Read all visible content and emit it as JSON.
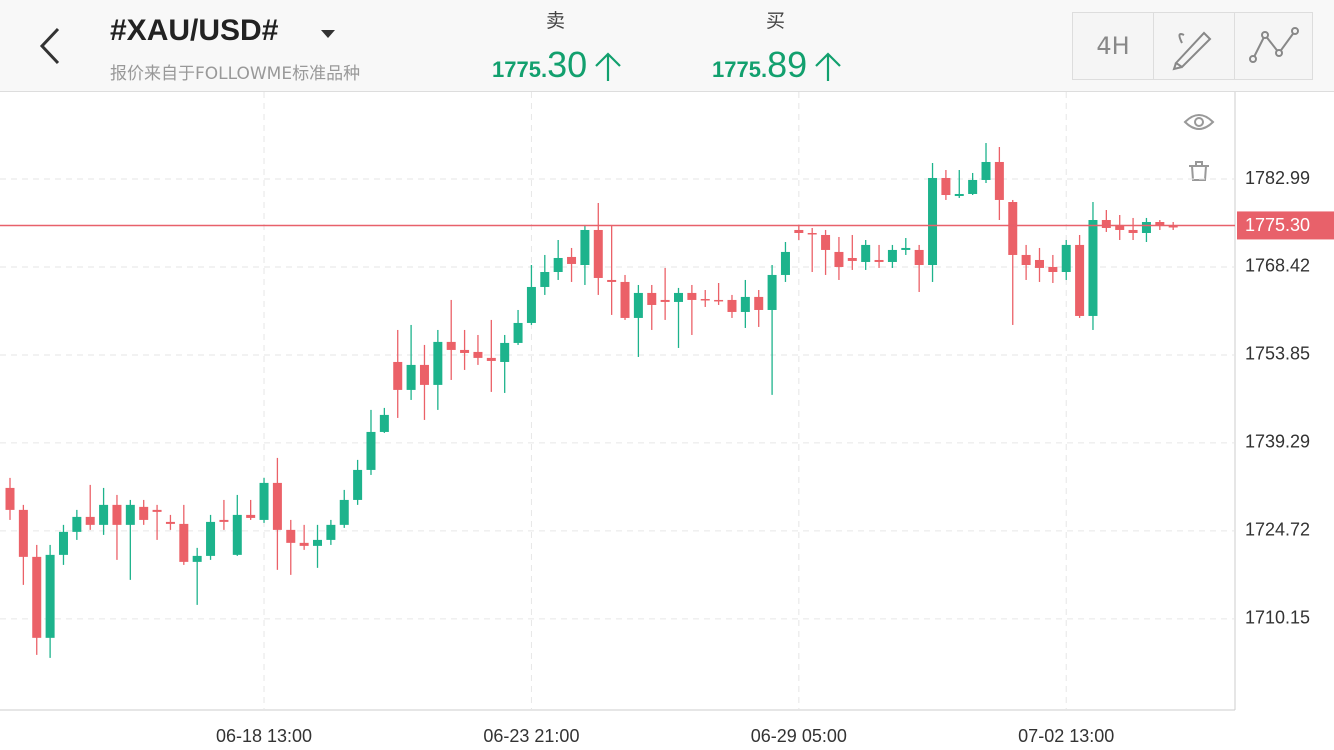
{
  "header": {
    "title": "#XAU/USD#",
    "subtitle": "报价来自于FOLLOWME标准品种",
    "sell": {
      "label": "卖",
      "price_small": "1775.",
      "price_large": "30"
    },
    "buy": {
      "label": "买",
      "price_small": "1775.",
      "price_large": "89"
    },
    "timeframe": "4H"
  },
  "chart_data": {
    "type": "candlestick",
    "categories": [
      null,
      null,
      null,
      null,
      null,
      null,
      null,
      null,
      null,
      null,
      null,
      null,
      null,
      null,
      null,
      null,
      null,
      null,
      null,
      "06-18 13:00",
      null,
      null,
      null,
      null,
      null,
      null,
      null,
      null,
      null,
      null,
      null,
      null,
      null,
      null,
      null,
      null,
      null,
      null,
      null,
      "06-23 21:00",
      null,
      null,
      null,
      null,
      null,
      null,
      null,
      null,
      null,
      null,
      null,
      null,
      null,
      null,
      null,
      null,
      null,
      null,
      null,
      "06-29 05:00",
      null,
      null,
      null,
      null,
      null,
      null,
      null,
      null,
      null,
      null,
      null,
      null,
      null,
      null,
      null,
      null,
      null,
      null,
      null,
      "07-02 13:00",
      null,
      null,
      null,
      null,
      null,
      null,
      null,
      null
    ],
    "open": [
      1731.83,
      1728.19,
      1720.41,
      1707.0,
      1720.74,
      1724.55,
      1727.03,
      1725.71,
      1729.02,
      1725.71,
      1728.69,
      1728.19,
      1726.2,
      1725.87,
      1719.58,
      1720.57,
      1726.53,
      1720.74,
      1727.36,
      1726.53,
      1732.66,
      1724.88,
      1722.73,
      1722.23,
      1723.22,
      1725.71,
      1729.84,
      1734.81,
      1741.1,
      1752.69,
      1748.06,
      1752.2,
      1748.89,
      1756.01,
      1754.68,
      1754.35,
      1753.36,
      1752.69,
      1755.84,
      1759.15,
      1765.11,
      1767.59,
      1770.08,
      1768.75,
      1774.55,
      1766.27,
      1765.94,
      1759.98,
      1764.12,
      1762.96,
      1762.63,
      1764.12,
      1763.12,
      1762.96,
      1762.96,
      1760.97,
      1763.46,
      1761.3,
      1767.1,
      1774.55,
      1774.05,
      1773.72,
      1770.91,
      1769.91,
      1769.25,
      1769.58,
      1769.25,
      1771.24,
      1771.24,
      1768.75,
      1783.16,
      1780.18,
      1780.51,
      1782.83,
      1785.81,
      1779.18,
      1770.41,
      1769.58,
      1768.42,
      1767.59,
      1772.07,
      1760.31,
      1776.2,
      1775.38,
      1774.55,
      1774.05,
      1775.87,
      1775.21
    ],
    "high": [
      1733.49,
      1729.02,
      1722.39,
      1722.39,
      1725.71,
      1728.19,
      1732.33,
      1731.83,
      1730.67,
      1729.84,
      1729.84,
      1729.02,
      1727.36,
      1729.02,
      1721.9,
      1727.36,
      1729.84,
      1730.67,
      1729.84,
      1733.49,
      1736.8,
      1726.53,
      1725.71,
      1725.71,
      1726.53,
      1731.5,
      1736.47,
      1744.75,
      1745.08,
      1757.99,
      1758.82,
      1755.51,
      1757.99,
      1762.96,
      1757.99,
      1757.16,
      1759.65,
      1757.16,
      1761.3,
      1768.75,
      1770.41,
      1772.89,
      1771.57,
      1775.38,
      1779.02,
      1775.38,
      1767.1,
      1765.44,
      1765.44,
      1768.26,
      1764.95,
      1765.44,
      1764.61,
      1765.77,
      1763.79,
      1766.27,
      1764.61,
      1768.75,
      1772.56,
      1775.38,
      1774.88,
      1774.55,
      1773.39,
      1773.72,
      1772.89,
      1772.07,
      1772.07,
      1773.22,
      1772.07,
      1785.64,
      1784.48,
      1784.48,
      1783.99,
      1788.95,
      1788.29,
      1779.52,
      1772.07,
      1771.57,
      1770.41,
      1772.89,
      1773.72,
      1779.18,
      1777.86,
      1777.03,
      1776.54,
      1776.54,
      1776.2,
      1775.87
    ],
    "low": [
      1726.53,
      1715.77,
      1704.18,
      1703.68,
      1719.08,
      1723.22,
      1724.88,
      1724.05,
      1719.91,
      1716.6,
      1725.71,
      1723.22,
      1724.88,
      1719.08,
      1712.46,
      1719.91,
      1724.88,
      1720.57,
      1726.53,
      1726.04,
      1718.26,
      1717.43,
      1721.57,
      1718.59,
      1722.39,
      1725.21,
      1729.02,
      1733.98,
      1740.94,
      1743.42,
      1746.4,
      1743.09,
      1744.75,
      1749.71,
      1751.37,
      1752.2,
      1747.73,
      1747.56,
      1755.51,
      1758.82,
      1763.79,
      1766.27,
      1765.94,
      1765.44,
      1763.79,
      1760.48,
      1759.65,
      1753.52,
      1757.99,
      1759.65,
      1755.01,
      1757.16,
      1761.8,
      1762.13,
      1759.98,
      1758.32,
      1758.49,
      1747.23,
      1765.94,
      1772.89,
      1767.59,
      1767.1,
      1766.27,
      1767.93,
      1767.93,
      1768.26,
      1768.26,
      1770.41,
      1764.28,
      1765.94,
      1779.52,
      1779.85,
      1780.34,
      1782.33,
      1776.2,
      1758.82,
      1766.27,
      1765.94,
      1765.77,
      1766.27,
      1759.98,
      1757.99,
      1774.22,
      1772.89,
      1772.89,
      1772.56,
      1774.55,
      1774.55
    ],
    "close": [
      1728.19,
      1720.41,
      1707.0,
      1720.74,
      1724.55,
      1727.03,
      1725.71,
      1729.02,
      1725.71,
      1729.02,
      1726.53,
      1727.86,
      1725.87,
      1719.58,
      1720.57,
      1726.2,
      1726.2,
      1727.36,
      1726.86,
      1732.66,
      1724.88,
      1722.73,
      1722.23,
      1723.22,
      1725.71,
      1729.84,
      1734.81,
      1741.1,
      1743.92,
      1748.06,
      1752.2,
      1748.89,
      1756.01,
      1754.68,
      1754.18,
      1753.36,
      1752.86,
      1755.84,
      1759.15,
      1765.11,
      1767.59,
      1769.91,
      1768.92,
      1774.55,
      1766.6,
      1765.94,
      1759.98,
      1764.12,
      1762.13,
      1762.63,
      1764.12,
      1762.96,
      1762.96,
      1762.79,
      1760.97,
      1763.46,
      1761.3,
      1767.1,
      1770.91,
      1774.05,
      1773.89,
      1771.24,
      1768.42,
      1769.42,
      1772.07,
      1769.25,
      1771.24,
      1771.57,
      1768.75,
      1783.16,
      1780.34,
      1780.51,
      1782.83,
      1785.81,
      1779.52,
      1770.41,
      1768.75,
      1768.26,
      1767.59,
      1772.07,
      1760.31,
      1776.2,
      1774.88,
      1774.55,
      1774.05,
      1775.87,
      1775.21,
      1775.05
    ],
    "ylim": [
      1695.05,
      1797.4
    ],
    "yticks": [
      1710.15,
      1724.72,
      1739.29,
      1753.85,
      1768.42,
      1782.99
    ],
    "current_price": {
      "value": 1775.3,
      "label": "1775.30"
    },
    "up_color": "#1db38c",
    "down_color": "#eb6168",
    "price_line_color": "#e8616a",
    "grid": true
  }
}
